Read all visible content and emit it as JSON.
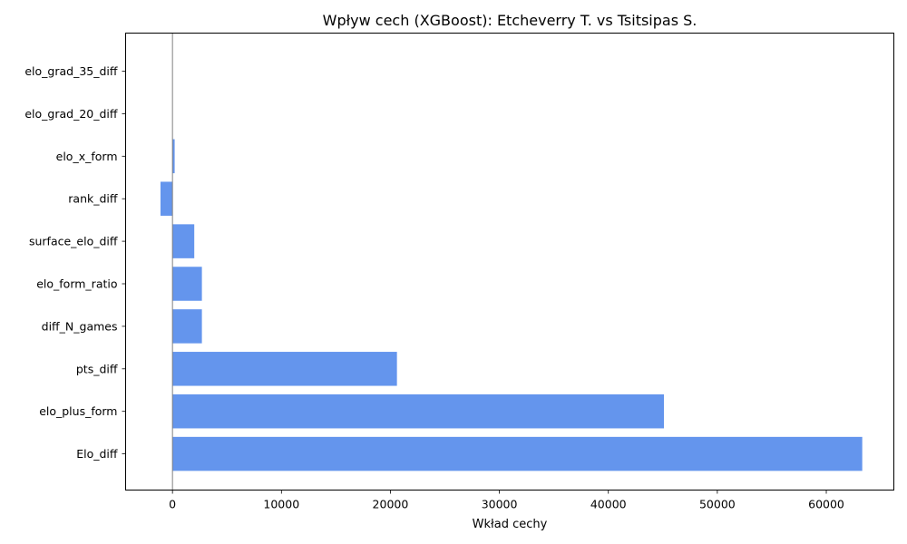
{
  "chart_data": {
    "type": "bar",
    "orientation": "horizontal",
    "title": "Wpływ cech (XGBoost): Etcheverry T. vs Tsitsipas S.",
    "xlabel": "Wkład cechy",
    "ylabel": "",
    "categories": [
      "elo_grad_35_diff",
      "elo_grad_20_diff",
      "elo_x_form",
      "rank_diff",
      "surface_elo_diff",
      "elo_form_ratio",
      "diff_N_games",
      "pts_diff",
      "elo_plus_form",
      "Elo_diff"
    ],
    "values": [
      0,
      0,
      200,
      -1100,
      2000,
      2700,
      2700,
      20600,
      45100,
      63300
    ],
    "xlim": [
      -4300,
      66200
    ],
    "xticks": [
      0,
      10000,
      20000,
      30000,
      40000,
      50000,
      60000
    ],
    "xtick_labels": [
      "0",
      "10000",
      "20000",
      "30000",
      "40000",
      "50000",
      "60000"
    ],
    "bar_color": "#6495ED",
    "zero_line": true,
    "grid": false,
    "legend": "none"
  }
}
